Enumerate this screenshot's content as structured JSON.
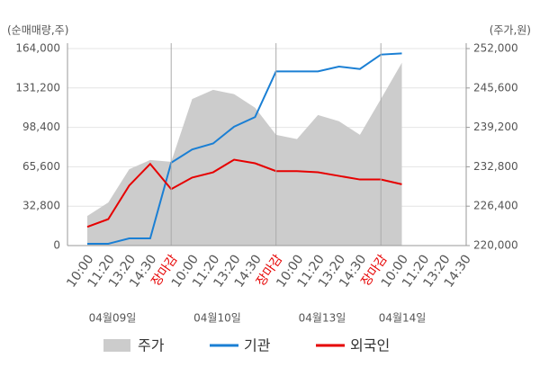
{
  "chart_data": {
    "type": "line",
    "y_axis_title": "(순매매량,주)",
    "y2_axis_title": "(주가,원)",
    "categories": [
      "10:00",
      "11:20",
      "13:20",
      "14:30",
      "장마감",
      "10:00",
      "11:20",
      "13:20",
      "14:30",
      "장마감",
      "10:00",
      "11:20",
      "13:20",
      "14:30",
      "장마감",
      "10:00",
      "11:20",
      "13:20",
      "14:30"
    ],
    "session_close_indices": [
      4,
      9,
      14
    ],
    "highlight_color": "#e60000",
    "date_labels": [
      "04월09일",
      "04월10일",
      "04월13일",
      "04월14일"
    ],
    "series": [
      {
        "name": "주가",
        "kind": "area",
        "axis": "y2",
        "color": "#cccccc",
        "values": [
          224800,
          227000,
          232400,
          233900,
          233600,
          243800,
          245300,
          244600,
          242400,
          238000,
          237300,
          241200,
          240200,
          238000,
          243800,
          249700,
          null,
          null,
          null
        ]
      },
      {
        "name": "기관",
        "kind": "line",
        "color": "#1a7fd4",
        "values": [
          1500,
          1500,
          6000,
          6000,
          69000,
          80000,
          85000,
          99000,
          107000,
          145000,
          145000,
          145000,
          149000,
          147000,
          159000,
          160000,
          null,
          null,
          null
        ]
      },
      {
        "name": "외국인",
        "kind": "line",
        "color": "#e60000",
        "values": [
          15600,
          22000,
          50000,
          68000,
          47000,
          56600,
          61000,
          71500,
          68500,
          62000,
          62000,
          61000,
          58000,
          55000,
          55000,
          51000,
          null,
          null,
          null
        ]
      }
    ],
    "ylim": [
      0,
      164000
    ],
    "yticks": [
      0,
      {
        "value": 32800,
        "label": "32,800"
      },
      {
        "value": 65600,
        "label": "65,600"
      },
      {
        "value": 98400,
        "label": "98,400"
      },
      {
        "value": 131200,
        "label": "131,200"
      },
      {
        "value": 164000,
        "label": "164,000"
      }
    ],
    "y2lim": [
      220000,
      252000
    ],
    "y2ticks": [
      {
        "value": 220000,
        "label": "220,000"
      },
      {
        "value": 226400,
        "label": "226,400"
      },
      {
        "value": 232800,
        "label": "232,800"
      },
      {
        "value": 239200,
        "label": "239,200"
      },
      {
        "value": 245600,
        "label": "245,600"
      },
      {
        "value": 252000,
        "label": "252,000"
      }
    ],
    "grid": true
  }
}
